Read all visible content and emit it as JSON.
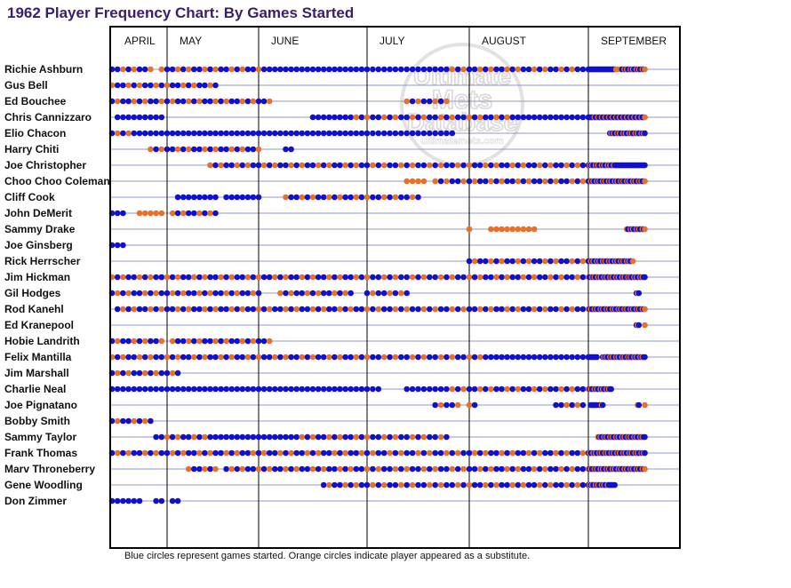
{
  "title": "1962 Player Frequency Chart: By Games Started",
  "footnote": "Blue circles represent games started. Orange circles indicate player appeared as a substitute.",
  "watermark": {
    "line1": "Ultimate",
    "line2": "Mets",
    "line3": "Database",
    "url": "ultimatemets.com"
  },
  "colors": {
    "started": "#1010d0",
    "substitute": "#e8702a",
    "grid": "#8f97c8",
    "frame": "#000000",
    "title": "#3b1d6e"
  },
  "chart_data": {
    "type": "scatter",
    "title": "1962 Player Frequency Chart: By Games Started",
    "xlabel": "",
    "ylabel": "",
    "total_games": 161,
    "x_unit": "game number",
    "months": [
      {
        "label": "APRIL",
        "start_game": 1
      },
      {
        "label": "MAY",
        "start_game": 11
      },
      {
        "label": "JUNE",
        "start_game": 28
      },
      {
        "label": "JULY",
        "start_game": 48
      },
      {
        "label": "AUGUST",
        "start_game": 66
      },
      {
        "label": "SEPTEMBER",
        "start_game": 88
      }
    ],
    "legend": [
      {
        "name": "Games started",
        "color": "#1010d0"
      },
      {
        "name": "Substitute appearance",
        "color": "#e8702a"
      }
    ],
    "players": [
      {
        "name": "Richie Ashburn",
        "segments": [
          [
            1,
            8,
            "m"
          ],
          [
            10,
            23,
            "m"
          ],
          [
            24,
            29,
            "m"
          ],
          [
            30,
            60,
            "b"
          ],
          [
            61,
            85,
            "m"
          ],
          [
            86,
            110,
            "b"
          ],
          [
            111,
            112,
            "o"
          ],
          [
            115,
            130,
            "m"
          ],
          [
            131,
            135,
            "m"
          ]
        ]
      },
      {
        "name": "Gus Bell",
        "segments": [
          [
            1,
            20,
            "m"
          ]
        ]
      },
      {
        "name": "Ed Bouchee",
        "segments": [
          [
            1,
            30,
            "m"
          ],
          [
            55,
            62,
            "m"
          ]
        ]
      },
      {
        "name": "Chris Cannizzaro",
        "segments": [
          [
            2,
            10,
            "b"
          ],
          [
            38,
            45,
            "b"
          ],
          [
            46,
            75,
            "m"
          ],
          [
            76,
            90,
            "b"
          ],
          [
            91,
            135,
            "s"
          ]
        ]
      },
      {
        "name": "Elio Chacon",
        "segments": [
          [
            1,
            4,
            "m"
          ],
          [
            5,
            50,
            "b"
          ],
          [
            51,
            63,
            "b"
          ],
          [
            106,
            135,
            "m"
          ]
        ]
      },
      {
        "name": "Harry Chiti",
        "segments": [
          [
            8,
            28,
            "m"
          ],
          [
            33,
            34,
            "b"
          ]
        ]
      },
      {
        "name": "Joe Christopher",
        "segments": [
          [
            19,
            70,
            "m"
          ],
          [
            71,
            110,
            "m"
          ],
          [
            111,
            135,
            "b"
          ]
        ]
      },
      {
        "name": "Choo Choo Coleman",
        "segments": [
          [
            55,
            58,
            "o"
          ],
          [
            60,
            135,
            "m"
          ]
        ]
      },
      {
        "name": "Cliff Cook",
        "segments": [
          [
            13,
            20,
            "b"
          ],
          [
            22,
            28,
            "b"
          ],
          [
            33,
            57,
            "m"
          ]
        ]
      },
      {
        "name": "John DeMerit",
        "segments": [
          [
            1,
            3,
            "b"
          ],
          [
            6,
            10,
            "o"
          ],
          [
            12,
            20,
            "m"
          ]
        ]
      },
      {
        "name": "Sammy Drake",
        "segments": [
          [
            66,
            66,
            "o"
          ],
          [
            70,
            78,
            "o"
          ],
          [
            120,
            135,
            "m"
          ]
        ]
      },
      {
        "name": "Joe Ginsberg",
        "segments": [
          [
            1,
            3,
            "b"
          ]
        ]
      },
      {
        "name": "Rick Herrscher",
        "segments": [
          [
            66,
            125,
            "m"
          ]
        ]
      },
      {
        "name": "Jim Hickman",
        "segments": [
          [
            1,
            10,
            "m"
          ],
          [
            10,
            135,
            "m"
          ]
        ]
      },
      {
        "name": "Gil Hodges",
        "segments": [
          [
            1,
            28,
            "m"
          ],
          [
            32,
            45,
            "m"
          ],
          [
            48,
            55,
            "m"
          ],
          [
            128,
            130,
            "m"
          ]
        ]
      },
      {
        "name": "Rod Kanehl",
        "segments": [
          [
            2,
            30,
            "m"
          ],
          [
            31,
            60,
            "m"
          ],
          [
            61,
            135,
            "m"
          ]
        ]
      },
      {
        "name": "Ed Kranepool",
        "segments": [
          [
            128,
            130,
            "m"
          ],
          [
            135,
            135,
            "o"
          ]
        ]
      },
      {
        "name": "Hobie Landrith",
        "segments": [
          [
            1,
            10,
            "m"
          ],
          [
            12,
            30,
            "m"
          ]
        ]
      },
      {
        "name": "Felix Mantilla",
        "segments": [
          [
            1,
            70,
            "m"
          ],
          [
            71,
            95,
            "b"
          ],
          [
            100,
            135,
            "m"
          ]
        ]
      },
      {
        "name": "Jim Marshall",
        "segments": [
          [
            1,
            13,
            "m"
          ]
        ]
      },
      {
        "name": "Charlie Neal",
        "segments": [
          [
            1,
            4,
            "b"
          ],
          [
            5,
            27,
            "b"
          ],
          [
            28,
            50,
            "b"
          ],
          [
            55,
            62,
            "b"
          ],
          [
            63,
            107,
            "m"
          ]
        ]
      },
      {
        "name": "Joe Pignatano",
        "segments": [
          [
            60,
            64,
            "m"
          ],
          [
            66,
            67,
            "m"
          ],
          [
            82,
            87,
            "m"
          ],
          [
            90,
            95,
            "b"
          ],
          [
            97,
            100,
            "m"
          ],
          [
            129,
            130,
            "m"
          ],
          [
            135,
            135,
            "o"
          ]
        ]
      },
      {
        "name": "Bobby Smith",
        "segments": [
          [
            1,
            8,
            "m"
          ]
        ]
      },
      {
        "name": "Sammy Taylor",
        "segments": [
          [
            9,
            20,
            "m"
          ],
          [
            21,
            35,
            "b"
          ],
          [
            36,
            62,
            "m"
          ],
          [
            96,
            135,
            "m"
          ]
        ]
      },
      {
        "name": "Frank Thomas",
        "segments": [
          [
            1,
            135,
            "m"
          ]
        ]
      },
      {
        "name": "Marv Throneberry",
        "segments": [
          [
            15,
            20,
            "m"
          ],
          [
            22,
            135,
            "m"
          ]
        ]
      },
      {
        "name": "Gene Woodling",
        "segments": [
          [
            40,
            105,
            "m"
          ],
          [
            106,
            110,
            "b"
          ]
        ]
      },
      {
        "name": "Don Zimmer",
        "segments": [
          [
            1,
            6,
            "b"
          ],
          [
            9,
            10,
            "b"
          ],
          [
            12,
            13,
            "b"
          ]
        ]
      }
    ]
  }
}
